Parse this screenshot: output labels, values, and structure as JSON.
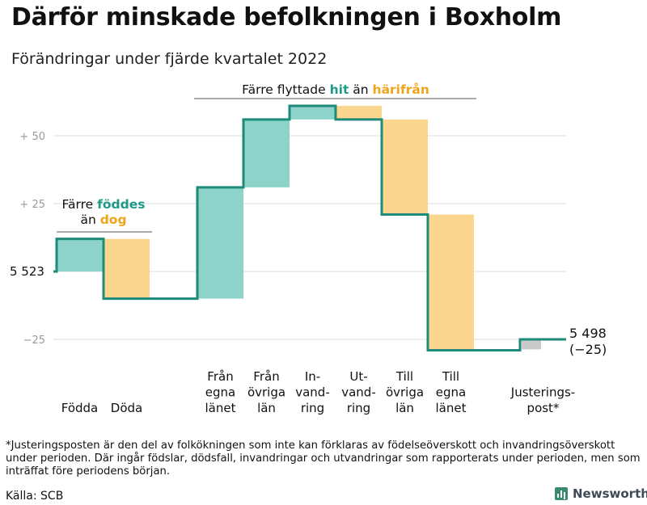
{
  "header": {
    "title": "Därför minskade befolkningen i Boxholm",
    "subtitle": "Förändringar under fjärde kvartalet 2022"
  },
  "chart_data": {
    "type": "waterfall",
    "baseline": 5523,
    "ylim": [
      5493,
      5583
    ],
    "ytick_values": [
      5548,
      5573,
      5498
    ],
    "ytick_labels": [
      "+ 25",
      "+ 50",
      "−25"
    ],
    "baseline_label": "5 523",
    "steps": [
      {
        "label_lines": [
          "Födda"
        ],
        "value": 12,
        "kind": "in"
      },
      {
        "label_lines": [
          "Döda"
        ],
        "value": -22,
        "kind": "out"
      },
      {
        "label_lines": [
          "Från",
          "egna",
          "länet"
        ],
        "value": 41,
        "kind": "in"
      },
      {
        "label_lines": [
          "Från",
          "övriga",
          "län"
        ],
        "value": 25,
        "kind": "in"
      },
      {
        "label_lines": [
          "In-",
          "vand-",
          "ring"
        ],
        "value": 5,
        "kind": "in"
      },
      {
        "label_lines": [
          "Ut-",
          "vand-",
          "ring"
        ],
        "value": -5,
        "kind": "out"
      },
      {
        "label_lines": [
          "Till",
          "övriga",
          "län"
        ],
        "value": -35,
        "kind": "out"
      },
      {
        "label_lines": [
          "Till",
          "egna",
          "länet"
        ],
        "value": -50,
        "kind": "out"
      },
      {
        "label_lines": [
          "Justerings-",
          "post*"
        ],
        "value": 4,
        "kind": "adjust"
      }
    ],
    "end_value_lines": [
      "5 498",
      "(−25)"
    ],
    "annotations": [
      {
        "prefix": "Färre ",
        "in_word": "föddes",
        "line2_prefix": "än ",
        "out_word": "dog"
      },
      {
        "prefix": "Färre flyttade ",
        "in_word": "hit",
        "middle": " än ",
        "out_word": "härifrån"
      }
    ],
    "colors": {
      "in": "#8dd3c9",
      "out": "#fbd68e",
      "adjust": "#c9c9c9",
      "line": "#1d8a7a",
      "in_text": "#1d9a88",
      "out_text": "#f0a41c",
      "grid": "#dedede",
      "tick": "#999999"
    }
  },
  "footnote": "*Justeringsposten är den del av folkökningen som inte kan förklaras av födelseöverskott och invandringsöverskott under perioden. Där ingår födslar, dödsfall, invandringar och utvandringar som rapporterats under perioden, men som inträffat före periodens början.",
  "source": "Källa: SCB",
  "brand": {
    "name": "Newsworthy",
    "icon": "bar-chart-icon"
  }
}
